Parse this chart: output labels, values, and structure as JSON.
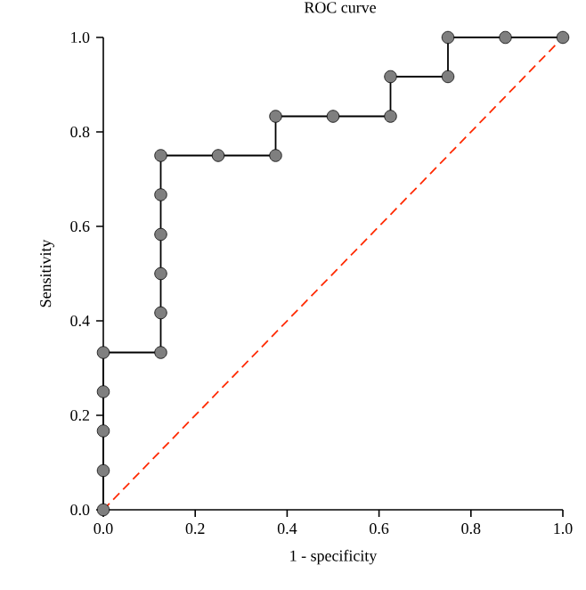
{
  "chart_data": {
    "type": "line",
    "title": "ROC curve",
    "xlabel": "1 - specificity",
    "ylabel": "Sensitivity",
    "xlim": [
      0,
      1
    ],
    "ylim": [
      0,
      1
    ],
    "xticks": [
      {
        "value": 0,
        "label": "0.0"
      },
      {
        "value": 0.2,
        "label": "0.2"
      },
      {
        "value": 0.4,
        "label": "0.4"
      },
      {
        "value": 0.6,
        "label": "0.6"
      },
      {
        "value": 0.8,
        "label": "0.8"
      },
      {
        "value": 1,
        "label": "1.0"
      }
    ],
    "yticks": [
      {
        "value": 0,
        "label": "0.0"
      },
      {
        "value": 0.2,
        "label": "0.2"
      },
      {
        "value": 0.4,
        "label": "0.4"
      },
      {
        "value": 0.6,
        "label": "0.6"
      },
      {
        "value": 0.8,
        "label": "0.8"
      },
      {
        "value": 1,
        "label": "1.0"
      }
    ],
    "grid": false,
    "series": [
      {
        "color": "#7f7f7f",
        "marker": "circle",
        "line_style": "solid",
        "x": [
          0,
          0,
          0,
          0,
          0,
          0.125,
          0.125,
          0.125,
          0.125,
          0.125,
          0.125,
          0.25,
          0.375,
          0.375,
          0.5,
          0.625,
          0.625,
          0.75,
          0.75,
          0.875,
          1
        ],
        "values": [
          0,
          0.083,
          0.167,
          0.25,
          0.333,
          0.333,
          0.417,
          0.5,
          0.583,
          0.667,
          0.75,
          0.75,
          0.75,
          0.833,
          0.833,
          0.833,
          0.917,
          0.917,
          1,
          1,
          1
        ]
      },
      {
        "color": "#ff2a00",
        "marker": "none",
        "line_style": "dashed",
        "x": [
          0,
          1
        ],
        "values": [
          0,
          1
        ]
      }
    ]
  }
}
